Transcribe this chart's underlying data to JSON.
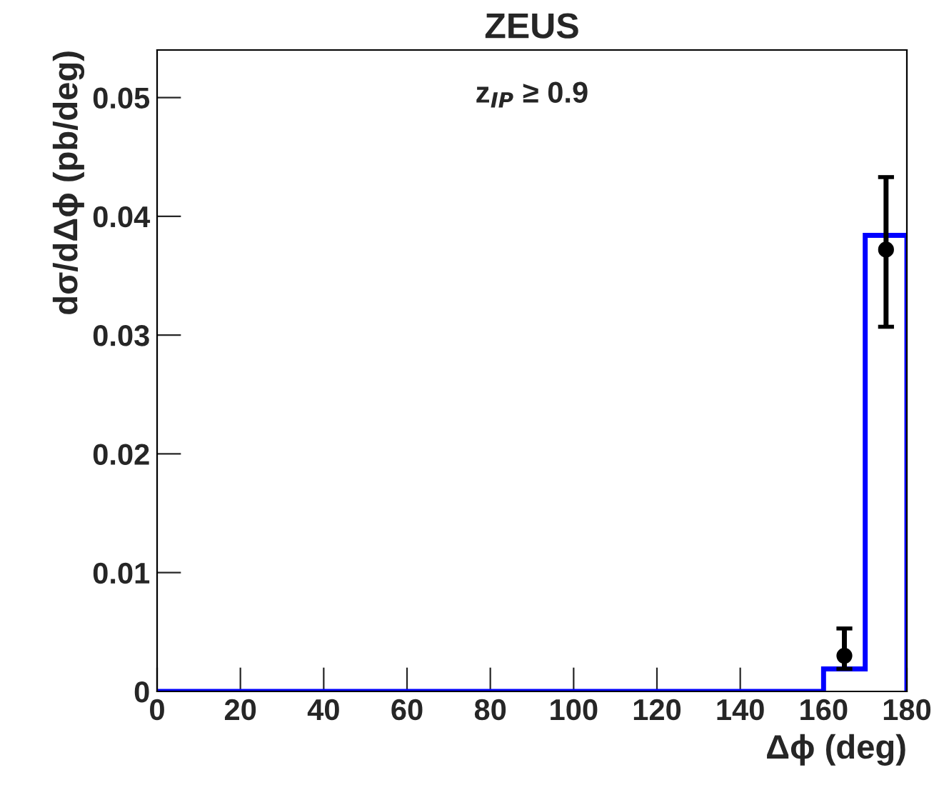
{
  "chart_data": {
    "type": "histogram",
    "title": "ZEUS",
    "xlabel": "Δϕ (deg)",
    "ylabel": "dσ/dΔϕ (pb/deg)",
    "annotations": [
      "z$_{IP}$ ≥ 0.9"
    ],
    "bins": [
      0,
      160,
      170,
      180
    ],
    "values": [
      0,
      0.0019,
      0.0384
    ],
    "color": "#0000ff",
    "series": [
      {
        "type": "scatter",
        "x": [
          165,
          175
        ],
        "values": [
          0.003,
          0.0372
        ],
        "errors": [
          [
            0.0019,
            0.0053
          ],
          [
            0.0307,
            0.0433
          ]
        ],
        "color": "#000000",
        "marker": "circle"
      }
    ],
    "xlim": [
      0,
      180
    ],
    "xticks": [
      0,
      20,
      40,
      60,
      80,
      100,
      120,
      140,
      160,
      180
    ],
    "ylim": [
      0,
      0.054
    ],
    "yticks": [
      0,
      0.01,
      0.02,
      0.03,
      0.04,
      0.05
    ],
    "grid": false,
    "legend": false
  }
}
